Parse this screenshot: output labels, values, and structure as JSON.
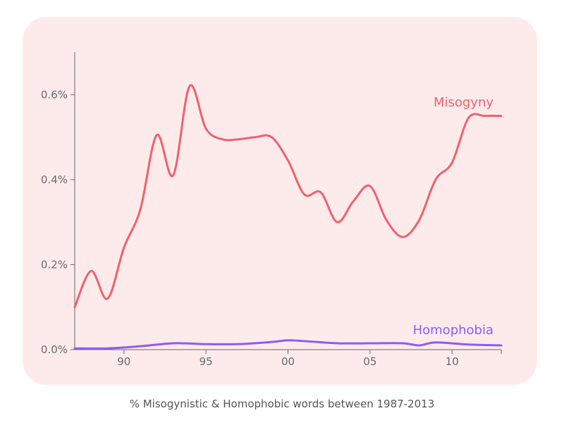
{
  "chart_data": {
    "type": "line",
    "caption": "% Misogynistic & Homophobic words between 1987-2013",
    "xlim": [
      1987.0,
      2013.0
    ],
    "ylim": [
      0.0,
      0.7
    ],
    "x_ticks": [
      {
        "value": 1990,
        "label": "90"
      },
      {
        "value": 1995,
        "label": "95"
      },
      {
        "value": 2000,
        "label": "00"
      },
      {
        "value": 2005,
        "label": "05"
      },
      {
        "value": 2010,
        "label": "10"
      }
    ],
    "y_ticks": [
      {
        "value": 0.0,
        "label": "0.0%"
      },
      {
        "value": 0.2,
        "label": "0.2%"
      },
      {
        "value": 0.4,
        "label": "0.4%"
      },
      {
        "value": 0.6,
        "label": "0.6%"
      }
    ],
    "grid": false,
    "series": [
      {
        "name": "Misogyny",
        "color": "#f0606d",
        "x": [
          1987,
          1988,
          1989,
          1990,
          1991,
          1992,
          1993,
          1994,
          1995,
          1996,
          1997,
          1998,
          1999,
          2000,
          2001,
          2002,
          2003,
          2004,
          2005,
          2006,
          2007,
          2008,
          2009,
          2010,
          2011,
          2012,
          2013
        ],
        "y": [
          0.1,
          0.185,
          0.12,
          0.24,
          0.33,
          0.505,
          0.41,
          0.62,
          0.52,
          0.495,
          0.495,
          0.5,
          0.5,
          0.445,
          0.365,
          0.37,
          0.3,
          0.35,
          0.385,
          0.305,
          0.265,
          0.305,
          0.4,
          0.44,
          0.545,
          0.55,
          0.55
        ]
      },
      {
        "name": "Homophobia",
        "color": "#8e5cf0",
        "x": [
          1987,
          1989,
          1991,
          1993,
          1995,
          1997,
          1999,
          2000,
          2001,
          2003,
          2005,
          2007,
          2008,
          2009,
          2011,
          2013
        ],
        "y": [
          0.003,
          0.003,
          0.008,
          0.015,
          0.013,
          0.013,
          0.018,
          0.022,
          0.02,
          0.015,
          0.015,
          0.015,
          0.01,
          0.017,
          0.012,
          0.01
        ]
      }
    ]
  }
}
